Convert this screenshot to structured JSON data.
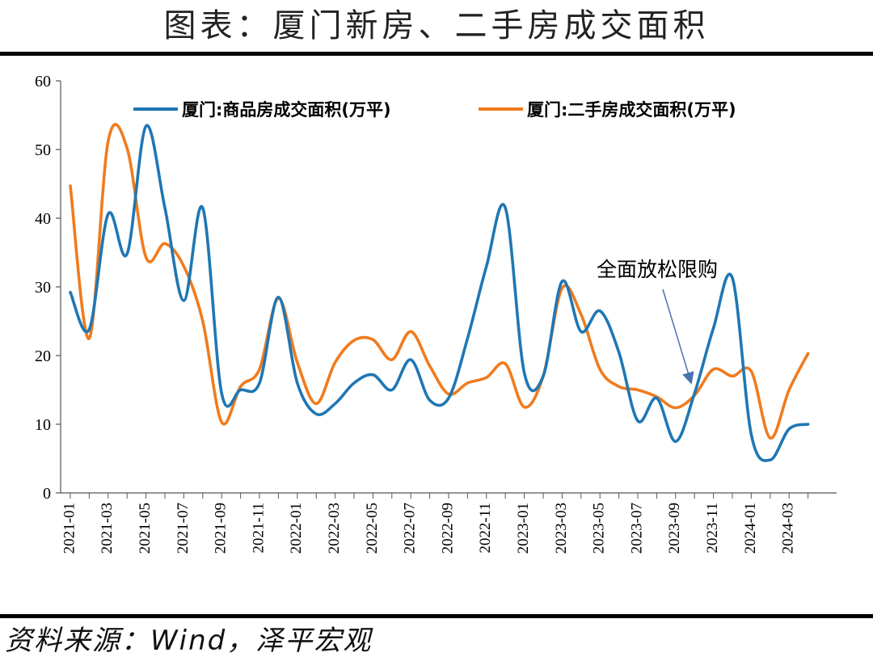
{
  "title": "图表：厦门新房、二手房成交面积",
  "source": "资料来源：Wind，泽平宏观",
  "colors": {
    "series1": "#1f77b4",
    "series2": "#f07b1e",
    "annotation_arrow": "#4a72b0"
  },
  "chart_data": {
    "type": "line",
    "ylim": [
      0,
      60
    ],
    "yticks": [
      0,
      10,
      20,
      30,
      40,
      50,
      60
    ],
    "x_tick_labels": [
      "2021-01",
      "2021-03",
      "2021-05",
      "2021-07",
      "2021-09",
      "2021-11",
      "2022-01",
      "2022-03",
      "2022-05",
      "2022-07",
      "2022-09",
      "2022-11",
      "2023-01",
      "2023-03",
      "2023-05",
      "2023-07",
      "2023-09",
      "2023-11",
      "2024-01",
      "2024-03"
    ],
    "x": [
      "2021-01",
      "2021-02",
      "2021-03",
      "2021-04",
      "2021-05",
      "2021-06",
      "2021-07",
      "2021-08",
      "2021-09",
      "2021-10",
      "2021-11",
      "2021-12",
      "2022-01",
      "2022-02",
      "2022-03",
      "2022-04",
      "2022-05",
      "2022-06",
      "2022-07",
      "2022-08",
      "2022-09",
      "2022-10",
      "2022-11",
      "2022-12",
      "2023-01",
      "2023-02",
      "2023-03",
      "2023-04",
      "2023-05",
      "2023-06",
      "2023-07",
      "2023-08",
      "2023-09",
      "2023-10",
      "2023-11",
      "2023-12",
      "2024-01",
      "2024-02",
      "2024-03",
      "2024-04"
    ],
    "series": [
      {
        "name": "厦门:商品房成交面积(万平)",
        "values": [
          29.2,
          23.8,
          40.6,
          34.8,
          53.4,
          41.5,
          28.0,
          41.5,
          14.5,
          15.0,
          16.0,
          28.5,
          16.0,
          11.5,
          13.0,
          16.0,
          17.2,
          15.0,
          19.4,
          13.5,
          13.8,
          22.5,
          33.0,
          41.5,
          17.5,
          17.0,
          30.8,
          23.5,
          26.5,
          20.5,
          10.5,
          13.8,
          7.5,
          14.5,
          24.0,
          31.3,
          8.5,
          4.8,
          9.3,
          10.0
        ]
      },
      {
        "name": "厦门:二手房成交面积(万平)",
        "values": [
          44.7,
          22.5,
          51.2,
          50.2,
          34.3,
          36.3,
          33.0,
          25.0,
          10.3,
          15.5,
          18.0,
          28.3,
          19.0,
          13.0,
          19.0,
          22.2,
          22.3,
          19.4,
          23.5,
          18.5,
          14.4,
          16.0,
          16.8,
          18.8,
          12.5,
          17.0,
          29.8,
          26.0,
          18.0,
          15.5,
          15.0,
          14.0,
          12.4,
          14.2,
          18.0,
          17.0,
          17.7,
          8.0,
          15.0,
          20.3
        ]
      }
    ],
    "annotation": {
      "text": "全面放松限购",
      "x": "2023-10",
      "y": 15.5
    },
    "legend_position": "top"
  }
}
